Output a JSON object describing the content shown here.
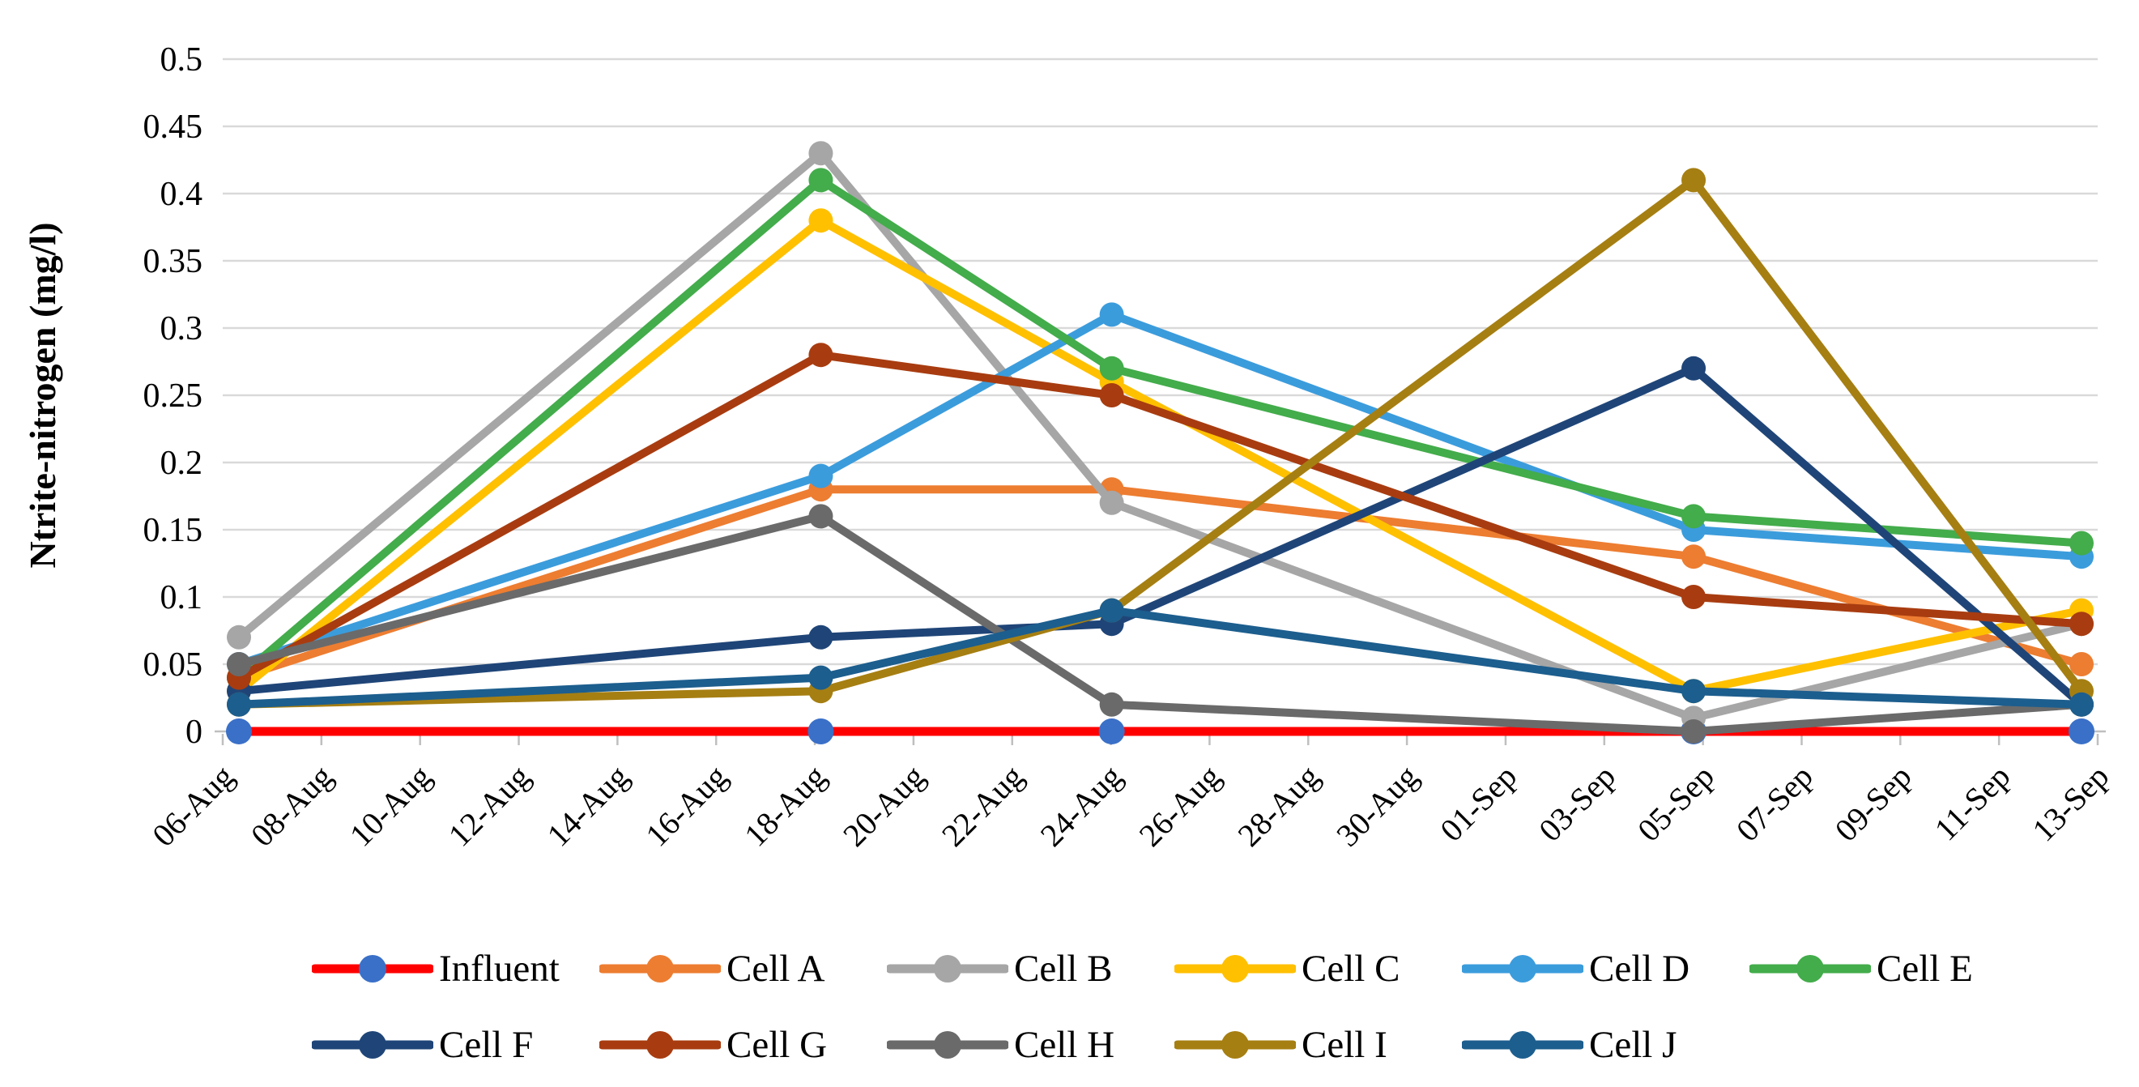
{
  "chart_data": {
    "type": "line",
    "title": "",
    "ylabel": "Ntrite-nitrogen (mg/l)",
    "xlabel": "",
    "ylim": [
      0,
      0.5
    ],
    "ytick_step": 0.05,
    "ytick_labels": [
      "0",
      "0.05",
      "0.1",
      "0.15",
      "0.2",
      "0.25",
      "0.3",
      "0.35",
      "0.4",
      "0.45",
      "0.5"
    ],
    "x_tick_labels": [
      "06-Aug",
      "08-Aug",
      "10-Aug",
      "12-Aug",
      "14-Aug",
      "16-Aug",
      "18-Aug",
      "20-Aug",
      "22-Aug",
      "24-Aug",
      "26-Aug",
      "28-Aug",
      "30-Aug",
      "01-Sep",
      "03-Sep",
      "05-Sep",
      "07-Sep",
      "09-Sep",
      "11-Sep",
      "13-Sep"
    ],
    "sample_dates": [
      "06-Aug",
      "18-Aug",
      "24-Aug",
      "05-Sep",
      "13-Sep"
    ],
    "sample_day_offsets": [
      0,
      12,
      18,
      30,
      38
    ],
    "axis_span_days": 38,
    "grid": true,
    "legend_position": "bottom",
    "gridline_color": "#D9D9D9",
    "axis_color": "#BFBFBF",
    "text_color": "#000000",
    "series": [
      {
        "name": "Influent",
        "line_color": "#FF0000",
        "marker_color": "#3A70C8",
        "values": [
          0,
          0,
          0,
          0,
          0
        ]
      },
      {
        "name": "Cell A",
        "line_color": "#ED7D31",
        "marker_color": "#ED7D31",
        "values": [
          0.04,
          0.18,
          0.18,
          0.13,
          0.05
        ]
      },
      {
        "name": "Cell B",
        "line_color": "#A6A6A6",
        "marker_color": "#A6A6A6",
        "values": [
          0.07,
          0.43,
          0.17,
          0.01,
          0.08
        ]
      },
      {
        "name": "Cell C",
        "line_color": "#FFC000",
        "marker_color": "#FFC000",
        "values": [
          0.03,
          0.38,
          0.26,
          0.03,
          0.09
        ]
      },
      {
        "name": "Cell D",
        "line_color": "#3B9CDC",
        "marker_color": "#3B9CDC",
        "values": [
          0.05,
          0.19,
          0.31,
          0.15,
          0.13
        ]
      },
      {
        "name": "Cell E",
        "line_color": "#43AC4B",
        "marker_color": "#43AC4B",
        "values": [
          0.04,
          0.41,
          0.27,
          0.16,
          0.14
        ]
      },
      {
        "name": "Cell F",
        "line_color": "#1F4578",
        "marker_color": "#1F4578",
        "values": [
          0.03,
          0.07,
          0.08,
          0.27,
          0.02
        ]
      },
      {
        "name": "Cell G",
        "line_color": "#A83C10",
        "marker_color": "#A83C10",
        "values": [
          0.04,
          0.28,
          0.25,
          0.1,
          0.08
        ]
      },
      {
        "name": "Cell H",
        "line_color": "#6A6A6A",
        "marker_color": "#6A6A6A",
        "values": [
          0.05,
          0.16,
          0.02,
          0.0,
          0.02
        ]
      },
      {
        "name": "Cell I",
        "line_color": "#A67F12",
        "marker_color": "#A67F12",
        "values": [
          0.02,
          0.03,
          0.09,
          0.41,
          0.03
        ]
      },
      {
        "name": "Cell J",
        "line_color": "#1C5E8E",
        "marker_color": "#1C5E8E",
        "values": [
          0.02,
          0.04,
          0.09,
          0.03,
          0.02
        ]
      }
    ]
  }
}
